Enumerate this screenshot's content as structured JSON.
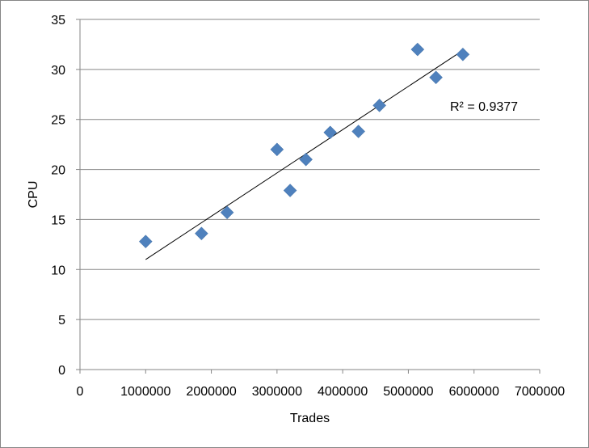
{
  "chart_data": {
    "type": "scatter",
    "title": "",
    "xlabel": "Trades",
    "ylabel": "CPU",
    "xlim": [
      0,
      7000000
    ],
    "ylim": [
      0,
      35
    ],
    "xticks": [
      0,
      1000000,
      2000000,
      3000000,
      4000000,
      5000000,
      6000000,
      7000000
    ],
    "xtick_labels": [
      "0",
      "1000000",
      "2000000",
      "3000000",
      "4000000",
      "5000000",
      "6000000",
      "7000000"
    ],
    "yticks": [
      0,
      5,
      10,
      15,
      20,
      25,
      30,
      35
    ],
    "ytick_labels": [
      "0",
      "5",
      "10",
      "15",
      "20",
      "25",
      "30",
      "35"
    ],
    "grid": "horizontal",
    "legend": "none",
    "marker": "diamond",
    "marker_color": "#4F81BD",
    "series": [
      {
        "x": [
          1000000,
          1850000,
          2240000,
          3000000,
          3200000,
          3440000,
          3810000,
          4240000,
          4560000,
          5140000,
          5420000,
          5830000
        ],
        "y": [
          12.8,
          13.6,
          15.7,
          22.0,
          17.9,
          21.0,
          23.7,
          23.8,
          26.4,
          32.0,
          29.2,
          31.5
        ]
      }
    ],
    "trendline": {
      "type": "linear",
      "x": [
        1000000,
        5830000
      ],
      "y": [
        11.0,
        31.9
      ],
      "color": "#000000"
    },
    "annotation": "R² = 0.9377"
  }
}
